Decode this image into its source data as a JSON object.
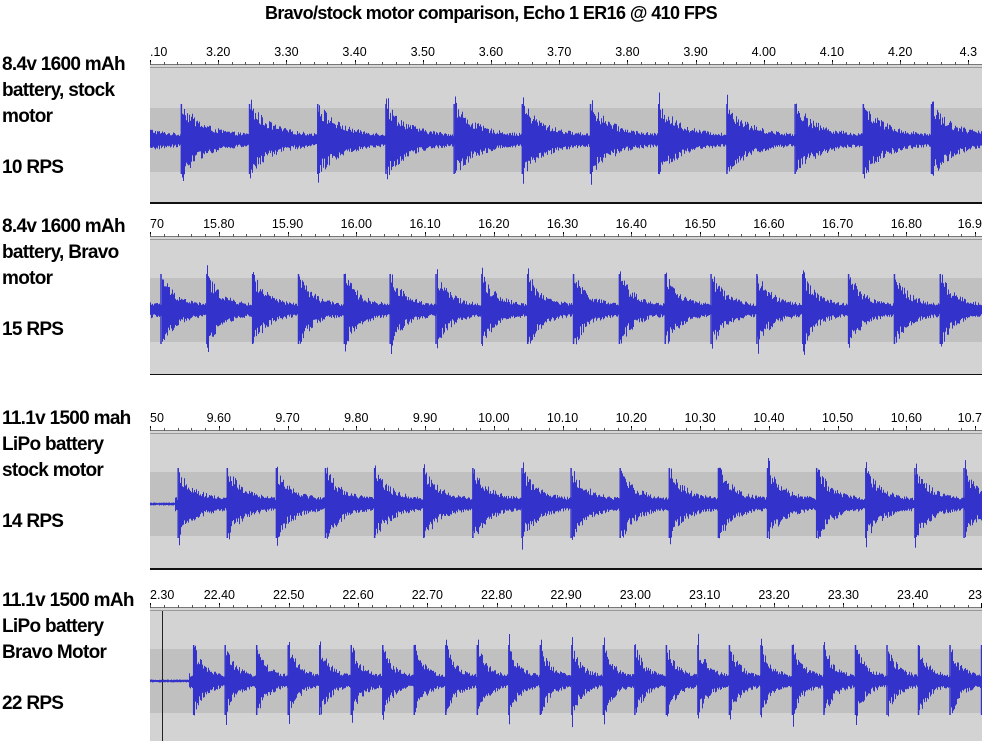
{
  "title": "Bravo/stock motor comparison, Echo 1 ER16 @ 410 FPS",
  "colors": {
    "waveform": "#3333cc",
    "track_background": "#d3d3d3",
    "track_band": "#c0c0c0"
  },
  "chart_data": [
    {
      "type": "line",
      "label_lines": [
        "8.4v 1600 mAh",
        "battery, stock",
        "motor"
      ],
      "rate_label": "10 RPS",
      "x_tick_labels": [
        ".10",
        "3.20",
        "3.30",
        "3.40",
        "3.50",
        "3.60",
        "3.70",
        "3.80",
        "3.90",
        "4.00",
        "4.10",
        "4.20",
        "4.3"
      ],
      "xlim": [
        3.08,
        4.3
      ],
      "xlabel": "",
      "ylabel": "",
      "rate_per_second": 10,
      "first_burst_time": 3.126,
      "onset": 3.08
    },
    {
      "type": "line",
      "label_lines": [
        "8.4v 1600 mAh",
        "battery, Bravo",
        "motor"
      ],
      "rate_label": "15 RPS",
      "x_tick_labels": [
        "70",
        "15.80",
        "15.90",
        "16.00",
        "16.10",
        "16.20",
        "16.30",
        "16.40",
        "16.50",
        "16.60",
        "16.70",
        "16.80",
        "16.9"
      ],
      "xlim": [
        15.7,
        16.91
      ],
      "xlabel": "",
      "ylabel": "",
      "rate_per_second": 15,
      "first_burst_time": 15.716,
      "onset": 15.7
    },
    {
      "type": "line",
      "label_lines": [
        "11.1v 1500 mah",
        "LiPo battery",
        "stock motor"
      ],
      "rate_label": "14 RPS",
      "x_tick_labels": [
        "50",
        "9.60",
        "9.70",
        "9.80",
        "9.90",
        "10.00",
        "10.10",
        "10.20",
        "10.30",
        "10.40",
        "10.50",
        "10.60",
        "10.7"
      ],
      "xlim": [
        9.5,
        10.71
      ],
      "xlabel": "",
      "ylabel": "",
      "rate_per_second": 14,
      "first_burst_time": 9.541,
      "onset": 9.535
    },
    {
      "type": "line",
      "label_lines": [
        "11.1v 1500 mAh",
        "LiPo battery",
        "Bravo Motor"
      ],
      "rate_label": "22 RPS",
      "x_tick_labels": [
        "2.30",
        "22.40",
        "22.50",
        "22.60",
        "22.70",
        "22.80",
        "22.90",
        "23.00",
        "23.10",
        "23.20",
        "23.30",
        "23.40",
        "23"
      ],
      "xlim": [
        22.3,
        23.5
      ],
      "xlabel": "",
      "ylabel": "",
      "rate_per_second": 22,
      "first_burst_time": 22.363,
      "onset": 22.355
    }
  ]
}
